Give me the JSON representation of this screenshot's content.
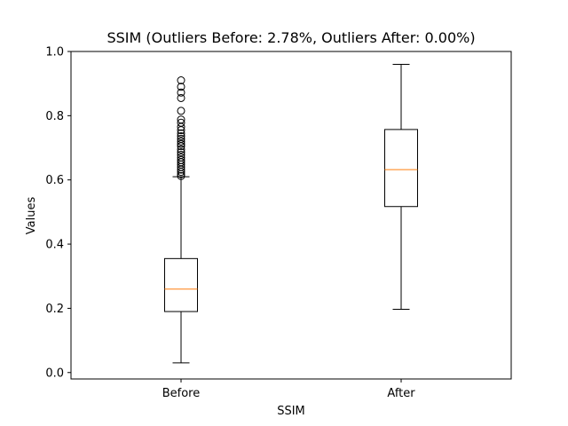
{
  "chart_data": {
    "type": "box",
    "title": "SSIM (Outliers Before: 2.78%, Outliers After: 0.00%)",
    "xlabel": "SSIM",
    "ylabel": "Values",
    "ylim": [
      -0.02,
      1.0
    ],
    "y_ticks": [
      "0.0",
      "0.2",
      "0.4",
      "0.6",
      "0.8",
      "1.0"
    ],
    "grid": false,
    "categories": [
      "Before",
      "After"
    ],
    "boxes": [
      {
        "category": "Before",
        "whisker_low": 0.03,
        "q1": 0.19,
        "median": 0.26,
        "q3": 0.355,
        "whisker_high": 0.61,
        "outliers": [
          0.612,
          0.618,
          0.625,
          0.632,
          0.64,
          0.648,
          0.655,
          0.662,
          0.67,
          0.678,
          0.686,
          0.695,
          0.705,
          0.712,
          0.72,
          0.728,
          0.736,
          0.745,
          0.755,
          0.765,
          0.778,
          0.788,
          0.815,
          0.855,
          0.872,
          0.89,
          0.91
        ]
      },
      {
        "category": "After",
        "whisker_low": 0.197,
        "q1": 0.517,
        "median": 0.632,
        "q3": 0.757,
        "whisker_high": 0.96,
        "outliers": []
      }
    ],
    "colors": {
      "box": "#000000",
      "median": "#ff7f0e",
      "outlier": "#000000",
      "axes": "#000000"
    }
  }
}
